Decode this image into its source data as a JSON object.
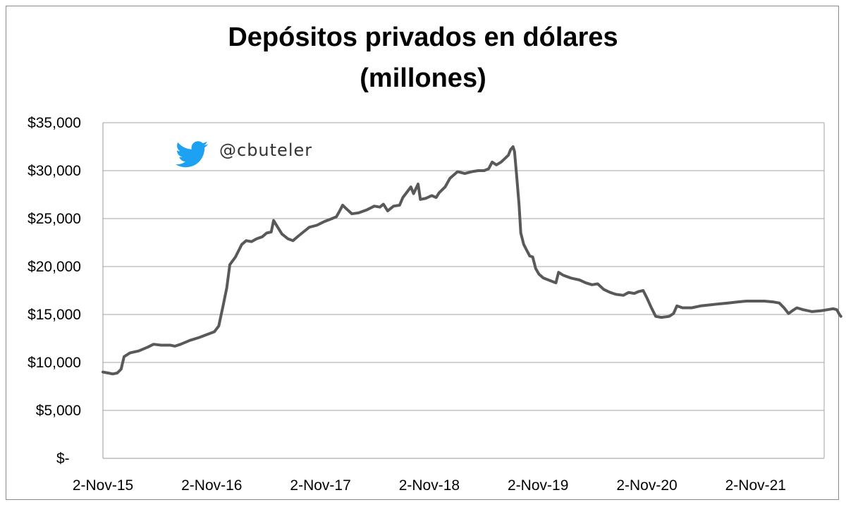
{
  "chart_data": {
    "type": "line",
    "title_line1": "Depósitos privados en dólares",
    "title_line2": "(millones)",
    "xlabel": "",
    "ylabel": "",
    "ylim": [
      0,
      35000
    ],
    "y_ticks": [
      0,
      5000,
      10000,
      15000,
      20000,
      25000,
      30000,
      35000
    ],
    "y_tick_labels": [
      "$-",
      "$5,000",
      "$10,000",
      "$15,000",
      "$20,000",
      "$25,000",
      "$30,000",
      "$35,000"
    ],
    "x_tick_labels": [
      "2-Nov-15",
      "2-Nov-16",
      "2-Nov-17",
      "2-Nov-18",
      "2-Nov-19",
      "2-Nov-20",
      "2-Nov-21"
    ],
    "x_range": [
      "2015-11-02",
      "2022-08-15"
    ],
    "grid": true,
    "legend": "none",
    "line_color": "#595959",
    "watermark": {
      "icon": "twitter-bird-icon",
      "handle": "@cbuteler",
      "icon_color": "#1da1f2"
    },
    "series": [
      {
        "points": [
          [
            "2015-11-02",
            9000
          ],
          [
            "2015-11-20",
            8900
          ],
          [
            "2015-12-05",
            8800
          ],
          [
            "2015-12-20",
            8900
          ],
          [
            "2016-01-02",
            9300
          ],
          [
            "2016-01-12",
            10600
          ],
          [
            "2016-02-01",
            11000
          ],
          [
            "2016-03-01",
            11200
          ],
          [
            "2016-04-01",
            11600
          ],
          [
            "2016-04-20",
            11900
          ],
          [
            "2016-05-15",
            11800
          ],
          [
            "2016-06-15",
            11800
          ],
          [
            "2016-07-01",
            11700
          ],
          [
            "2016-07-20",
            11900
          ],
          [
            "2016-08-20",
            12300
          ],
          [
            "2016-09-20",
            12600
          ],
          [
            "2016-10-15",
            12900
          ],
          [
            "2016-11-10",
            13200
          ],
          [
            "2016-11-25",
            13800
          ],
          [
            "2016-12-10",
            16000
          ],
          [
            "2016-12-22",
            17800
          ],
          [
            "2017-01-01",
            20200
          ],
          [
            "2017-01-20",
            21000
          ],
          [
            "2017-02-10",
            22300
          ],
          [
            "2017-02-25",
            22700
          ],
          [
            "2017-03-15",
            22600
          ],
          [
            "2017-04-01",
            22900
          ],
          [
            "2017-04-20",
            23100
          ],
          [
            "2017-05-05",
            23500
          ],
          [
            "2017-05-20",
            23600
          ],
          [
            "2017-05-28",
            24800
          ],
          [
            "2017-06-05",
            24400
          ],
          [
            "2017-06-25",
            23400
          ],
          [
            "2017-07-15",
            22900
          ],
          [
            "2017-08-01",
            22700
          ],
          [
            "2017-08-20",
            23200
          ],
          [
            "2017-09-05",
            23600
          ],
          [
            "2017-09-25",
            24100
          ],
          [
            "2017-10-20",
            24300
          ],
          [
            "2017-11-15",
            24700
          ],
          [
            "2017-12-10",
            25000
          ],
          [
            "2017-12-25",
            25200
          ],
          [
            "2018-01-05",
            25800
          ],
          [
            "2018-01-15",
            26400
          ],
          [
            "2018-01-28",
            26000
          ],
          [
            "2018-02-15",
            25500
          ],
          [
            "2018-03-10",
            25600
          ],
          [
            "2018-04-05",
            25900
          ],
          [
            "2018-05-01",
            26300
          ],
          [
            "2018-05-20",
            26200
          ],
          [
            "2018-06-01",
            26500
          ],
          [
            "2018-06-15",
            25800
          ],
          [
            "2018-07-05",
            26300
          ],
          [
            "2018-07-25",
            26400
          ],
          [
            "2018-08-05",
            27200
          ],
          [
            "2018-08-20",
            27800
          ],
          [
            "2018-09-01",
            28300
          ],
          [
            "2018-09-10",
            27600
          ],
          [
            "2018-09-25",
            28600
          ],
          [
            "2018-10-03",
            27000
          ],
          [
            "2018-10-20",
            27100
          ],
          [
            "2018-11-10",
            27400
          ],
          [
            "2018-11-25",
            27200
          ],
          [
            "2018-12-05",
            27700
          ],
          [
            "2018-12-25",
            28300
          ],
          [
            "2019-01-10",
            29200
          ],
          [
            "2019-01-25",
            29600
          ],
          [
            "2019-02-05",
            29900
          ],
          [
            "2019-03-01",
            29700
          ],
          [
            "2019-03-25",
            29900
          ],
          [
            "2019-04-15",
            30000
          ],
          [
            "2019-05-05",
            30000
          ],
          [
            "2019-05-20",
            30200
          ],
          [
            "2019-06-01",
            30900
          ],
          [
            "2019-06-15",
            30600
          ],
          [
            "2019-07-01",
            30900
          ],
          [
            "2019-07-15",
            31300
          ],
          [
            "2019-07-25",
            31600
          ],
          [
            "2019-08-02",
            32200
          ],
          [
            "2019-08-10",
            32500
          ],
          [
            "2019-08-15",
            32000
          ],
          [
            "2019-08-22",
            29500
          ],
          [
            "2019-08-30",
            26500
          ],
          [
            "2019-09-05",
            23500
          ],
          [
            "2019-09-15",
            22300
          ],
          [
            "2019-09-25",
            21700
          ],
          [
            "2019-10-05",
            21100
          ],
          [
            "2019-10-15",
            21000
          ],
          [
            "2019-10-25",
            19800
          ],
          [
            "2019-11-05",
            19200
          ],
          [
            "2019-11-20",
            18800
          ],
          [
            "2019-12-15",
            18500
          ],
          [
            "2020-01-01",
            18300
          ],
          [
            "2020-01-10",
            19400
          ],
          [
            "2020-01-25",
            19100
          ],
          [
            "2020-02-20",
            18800
          ],
          [
            "2020-03-20",
            18600
          ],
          [
            "2020-04-10",
            18300
          ],
          [
            "2020-05-01",
            18100
          ],
          [
            "2020-05-20",
            18200
          ],
          [
            "2020-06-10",
            17600
          ],
          [
            "2020-07-01",
            17300
          ],
          [
            "2020-07-20",
            17100
          ],
          [
            "2020-08-15",
            17000
          ],
          [
            "2020-09-01",
            17300
          ],
          [
            "2020-09-20",
            17200
          ],
          [
            "2020-10-05",
            17400
          ],
          [
            "2020-10-20",
            17500
          ],
          [
            "2020-11-02",
            16700
          ],
          [
            "2020-11-15",
            15800
          ],
          [
            "2020-12-01",
            14800
          ],
          [
            "2020-12-20",
            14700
          ],
          [
            "2021-01-15",
            14800
          ],
          [
            "2021-01-30",
            15100
          ],
          [
            "2021-02-10",
            15900
          ],
          [
            "2021-03-01",
            15700
          ],
          [
            "2021-04-01",
            15700
          ],
          [
            "2021-05-01",
            15900
          ],
          [
            "2021-06-01",
            16000
          ],
          [
            "2021-07-01",
            16100
          ],
          [
            "2021-08-01",
            16200
          ],
          [
            "2021-09-01",
            16300
          ],
          [
            "2021-10-01",
            16400
          ],
          [
            "2021-11-01",
            16400
          ],
          [
            "2021-12-01",
            16400
          ],
          [
            "2022-01-01",
            16300
          ],
          [
            "2022-01-20",
            16200
          ],
          [
            "2022-02-05",
            15700
          ],
          [
            "2022-02-20",
            15100
          ],
          [
            "2022-03-05",
            15400
          ],
          [
            "2022-03-20",
            15700
          ],
          [
            "2022-04-10",
            15500
          ],
          [
            "2022-05-10",
            15300
          ],
          [
            "2022-06-10",
            15400
          ],
          [
            "2022-07-01",
            15500
          ],
          [
            "2022-07-20",
            15600
          ],
          [
            "2022-08-01",
            15500
          ],
          [
            "2022-08-10",
            15000
          ],
          [
            "2022-08-15",
            14800
          ]
        ]
      }
    ]
  }
}
